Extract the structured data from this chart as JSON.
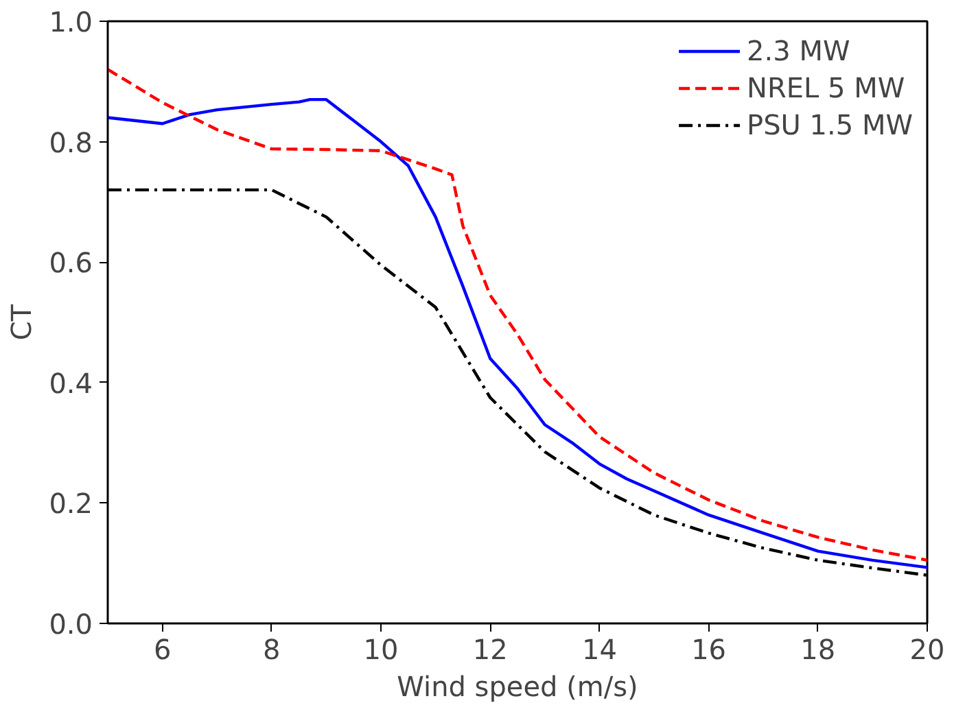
{
  "chart_data": {
    "type": "line",
    "xlabel": "Wind speed (m/s)",
    "ylabel": "CT",
    "xlim": [
      5,
      20
    ],
    "ylim": [
      0,
      1
    ],
    "xticks": [
      6,
      8,
      10,
      12,
      14,
      16,
      18,
      20
    ],
    "yticks": [
      {
        "value": 0,
        "label": "0.0"
      },
      0.2,
      0.4,
      0.6,
      0.8,
      {
        "value": 1,
        "label": "1.0"
      }
    ],
    "grid": false,
    "legend": "top right",
    "series": [
      {
        "name": "2.3 MW",
        "color": "#0000ff",
        "line_style": "solid",
        "x": [
          5,
          6,
          6.5,
          7,
          8,
          8.5,
          8.7,
          9,
          10,
          10.5,
          11,
          11.5,
          12,
          12.5,
          13,
          13.5,
          14,
          14.5,
          15,
          16,
          17,
          18,
          19,
          20
        ],
        "values": [
          0.84,
          0.83,
          0.845,
          0.853,
          0.862,
          0.866,
          0.87,
          0.87,
          0.8,
          0.76,
          0.675,
          0.56,
          0.44,
          0.39,
          0.33,
          0.3,
          0.265,
          0.24,
          0.22,
          0.18,
          0.15,
          0.12,
          0.105,
          0.093
        ]
      },
      {
        "name": "NREL 5 MW",
        "color": "#ff0000",
        "line_style": "dashed",
        "x": [
          5,
          6,
          7,
          8,
          9,
          10,
          10.5,
          11,
          11.3,
          11.5,
          12,
          12.5,
          13,
          14,
          15,
          16,
          17,
          18,
          19,
          20
        ],
        "values": [
          0.92,
          0.865,
          0.82,
          0.788,
          0.787,
          0.785,
          0.77,
          0.755,
          0.745,
          0.66,
          0.545,
          0.48,
          0.405,
          0.31,
          0.25,
          0.205,
          0.17,
          0.143,
          0.122,
          0.105
        ]
      },
      {
        "name": "PSU 1.5 MW",
        "color": "#000000",
        "line_style": "dashdot",
        "x": [
          5,
          6,
          7,
          8,
          9,
          10,
          11,
          11.5,
          12,
          13,
          14,
          15,
          16,
          17,
          18,
          19,
          20
        ],
        "values": [
          0.72,
          0.72,
          0.72,
          0.72,
          0.675,
          0.595,
          0.525,
          0.45,
          0.375,
          0.285,
          0.225,
          0.18,
          0.15,
          0.125,
          0.105,
          0.092,
          0.08
        ]
      }
    ]
  }
}
